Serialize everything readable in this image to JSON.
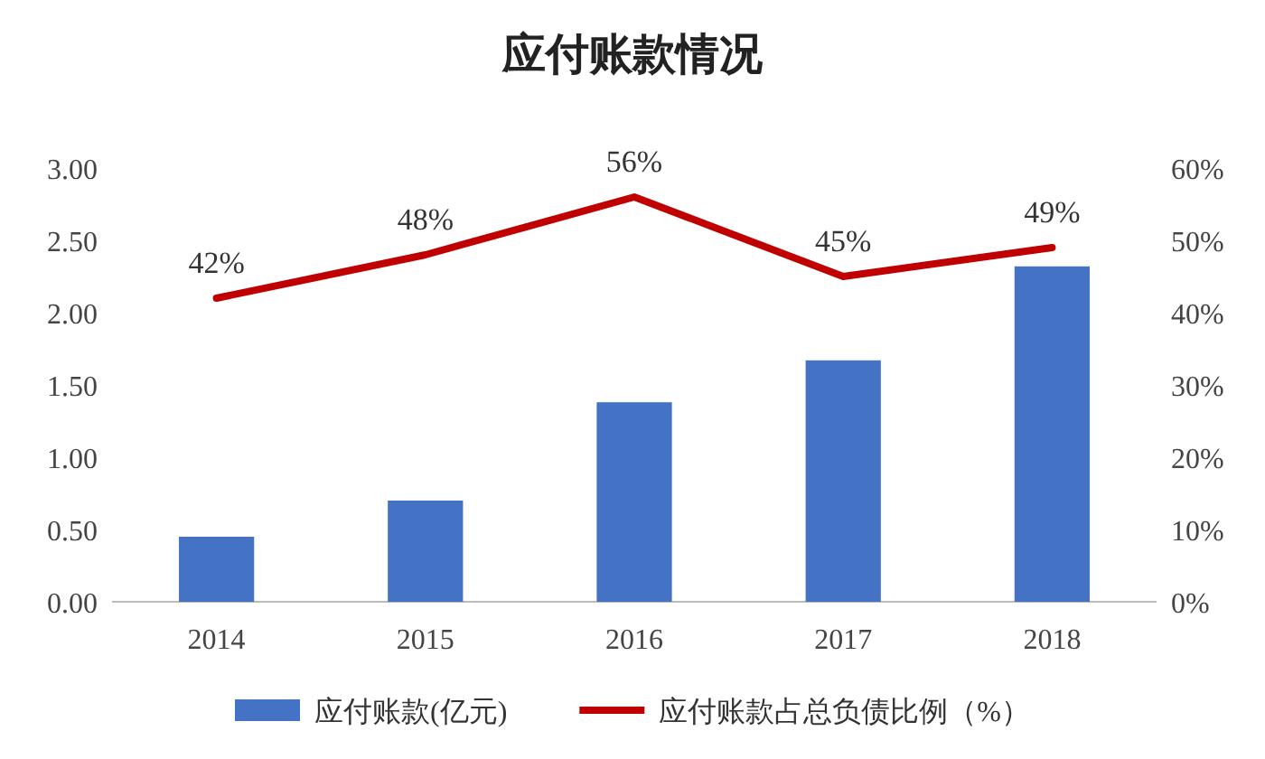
{
  "chart_data": {
    "type": "bar",
    "title": "应付账款情况",
    "categories": [
      "2014",
      "2015",
      "2016",
      "2017",
      "2018"
    ],
    "series": [
      {
        "name": "应付账款(亿元)",
        "color": "#4472c4",
        "values": [
          0.45,
          0.7,
          1.38,
          1.67,
          2.32
        ]
      },
      {
        "name": "应付账款占总负债比例（%）",
        "type": "line",
        "axis": "y2",
        "color": "#c00000",
        "values": [
          42,
          48,
          56,
          45,
          49
        ],
        "value_labels": [
          "42%",
          "48%",
          "56%",
          "45%",
          "49%"
        ]
      }
    ],
    "ylim": [
      0,
      3
    ],
    "yticks": [
      {
        "value": 0,
        "label": "0.00"
      },
      {
        "value": 0.5,
        "label": "0.50"
      },
      {
        "value": 1,
        "label": "1.00"
      },
      {
        "value": 1.5,
        "label": "1.50"
      },
      {
        "value": 2,
        "label": "2.00"
      },
      {
        "value": 2.5,
        "label": "2.50"
      },
      {
        "value": 3,
        "label": "3.00"
      }
    ],
    "y2lim": [
      0,
      60
    ],
    "y2ticks": [
      {
        "value": 0,
        "label": "0%"
      },
      {
        "value": 10,
        "label": "10%"
      },
      {
        "value": 20,
        "label": "20%"
      },
      {
        "value": 30,
        "label": "30%"
      },
      {
        "value": 40,
        "label": "40%"
      },
      {
        "value": 50,
        "label": "50%"
      },
      {
        "value": 60,
        "label": "60%"
      }
    ],
    "legend": "bottom",
    "grid": false
  }
}
